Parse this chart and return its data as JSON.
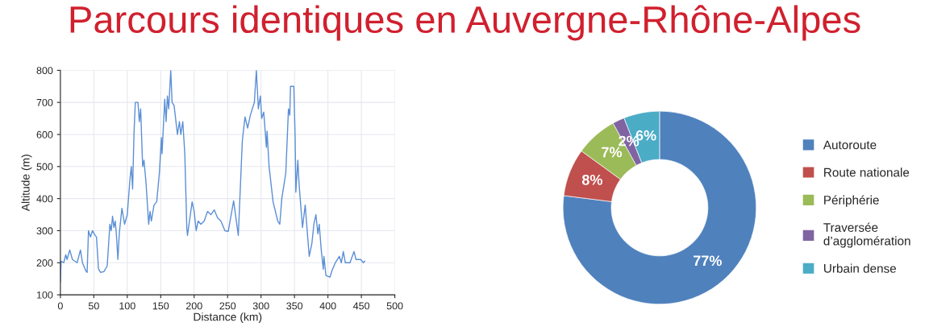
{
  "chart_data": [
    {
      "type": "line",
      "title": "Parcours identiques en Auvergne-Rhône-Alpes",
      "xlabel": "Distance (km)",
      "ylabel": "Altitude (m)",
      "xlim": [
        0,
        500
      ],
      "ylim": [
        100,
        800
      ],
      "xticks": [
        0,
        50,
        100,
        150,
        200,
        250,
        300,
        350,
        400,
        450,
        500
      ],
      "yticks": [
        100,
        200,
        300,
        400,
        500,
        600,
        700,
        800
      ],
      "grid": true,
      "legend": false,
      "series": [
        {
          "color": "#5b8fd6",
          "x": [
            0,
            1,
            5,
            8,
            10,
            14,
            18,
            25,
            30,
            33,
            38,
            40,
            42,
            45,
            48,
            52,
            54,
            57,
            60,
            65,
            70,
            74,
            76,
            78,
            80,
            82,
            84,
            86,
            88,
            92,
            96,
            100,
            104,
            106,
            108,
            110,
            112,
            116,
            118,
            120,
            123,
            125,
            128,
            132,
            134,
            136,
            140,
            144,
            148,
            151,
            152,
            156,
            158,
            160,
            162,
            165,
            167,
            170,
            175,
            178,
            180,
            183,
            186,
            189,
            190,
            193,
            197,
            200,
            203,
            206,
            210,
            215,
            220,
            225,
            230,
            235,
            240,
            246,
            251,
            259,
            266,
            272,
            276,
            280,
            284,
            290,
            293,
            296,
            299,
            301,
            304,
            308,
            309,
            312,
            318,
            325,
            328,
            331,
            337,
            341,
            343,
            344,
            349,
            351,
            352,
            355,
            357,
            362,
            366,
            372,
            376,
            379,
            382,
            385,
            387,
            390,
            393,
            394,
            397,
            403,
            406,
            411,
            417,
            420,
            423,
            426,
            433,
            439,
            442,
            449,
            453,
            455
          ],
          "values": [
            140,
            205,
            200,
            225,
            210,
            240,
            210,
            200,
            240,
            200,
            175,
            170,
            300,
            280,
            300,
            285,
            280,
            180,
            170,
            172,
            190,
            320,
            300,
            345,
            310,
            330,
            280,
            210,
            290,
            370,
            320,
            350,
            460,
            500,
            430,
            600,
            700,
            700,
            640,
            680,
            500,
            520,
            450,
            320,
            360,
            330,
            380,
            390,
            480,
            590,
            540,
            710,
            640,
            720,
            680,
            800,
            700,
            690,
            600,
            640,
            600,
            640,
            540,
            310,
            285,
            330,
            390,
            360,
            300,
            330,
            320,
            330,
            360,
            350,
            365,
            340,
            330,
            300,
            298,
            393,
            285,
            580,
            655,
            620,
            660,
            700,
            800,
            680,
            720,
            650,
            670,
            560,
            610,
            500,
            390,
            330,
            320,
            400,
            480,
            680,
            660,
            750,
            750,
            590,
            420,
            520,
            440,
            310,
            380,
            220,
            260,
            320,
            350,
            290,
            320,
            240,
            180,
            220,
            160,
            155,
            175,
            200,
            220,
            200,
            235,
            200,
            200,
            235,
            210,
            210,
            200,
            205
          ]
        }
      ]
    },
    {
      "type": "donut",
      "categories": [
        "Autoroute",
        "Route nationale",
        "Périphérie",
        "Traversée\nd’agglomération",
        "Urbain dense"
      ],
      "values": [
        77,
        8,
        7,
        2,
        6
      ],
      "colors": [
        "#4f81bd",
        "#c0504d",
        "#9bbb59",
        "#8064a2",
        "#4bacc6"
      ],
      "value_labels": [
        "77%",
        "8%",
        "7%",
        "2%",
        "6%"
      ],
      "legend": "right"
    }
  ]
}
